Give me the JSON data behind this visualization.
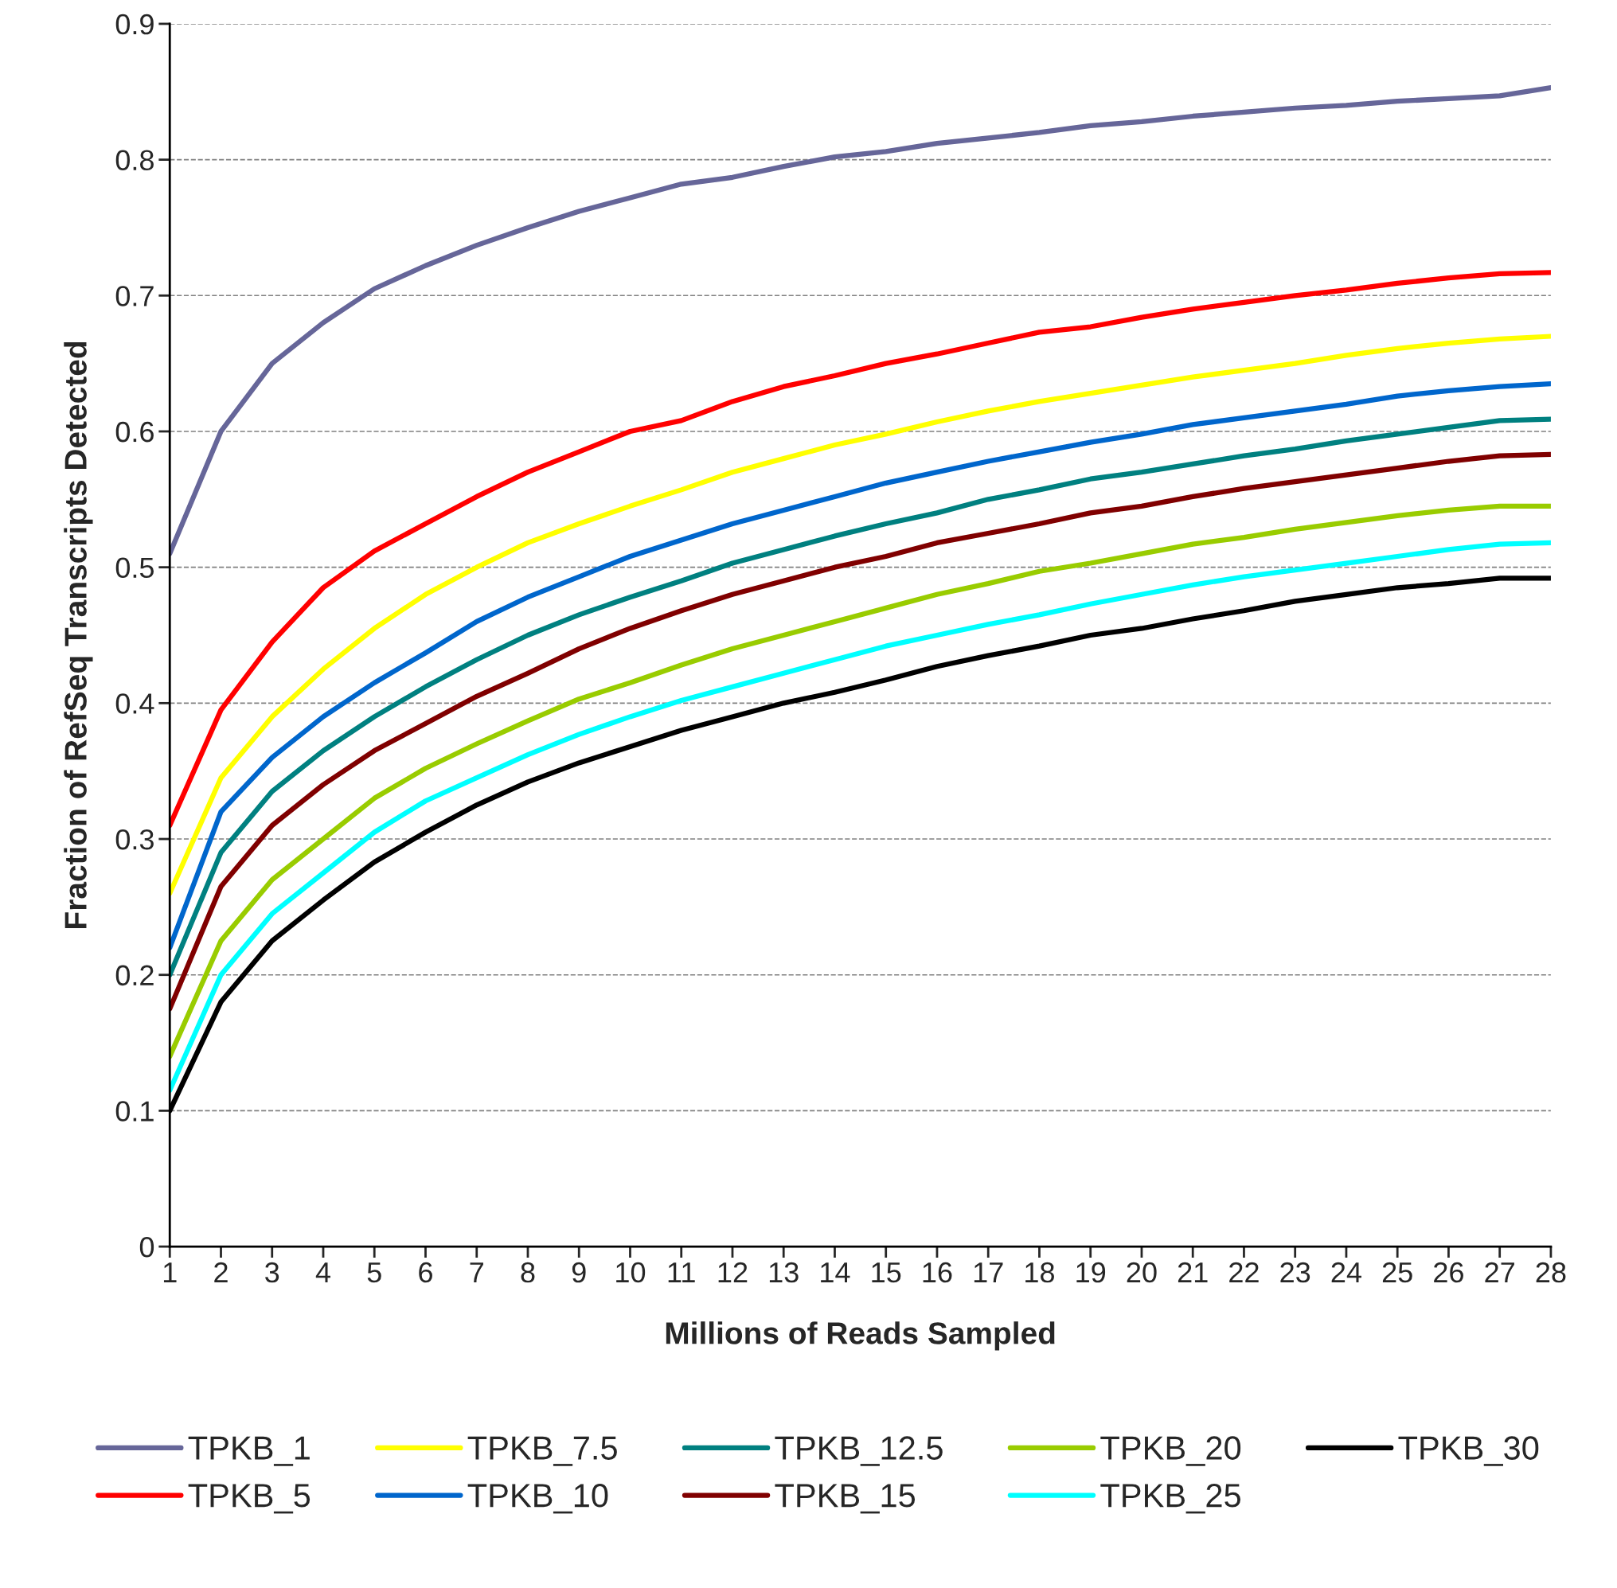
{
  "chart_data": {
    "type": "line",
    "xlabel": "Millions of Reads Sampled",
    "ylabel": "Fraction of RefSeq Transcripts Detected",
    "x": [
      1,
      2,
      3,
      4,
      5,
      6,
      7,
      8,
      9,
      10,
      11,
      12,
      13,
      14,
      15,
      16,
      17,
      18,
      19,
      20,
      21,
      22,
      23,
      24,
      25,
      26,
      27,
      28
    ],
    "series": [
      {
        "name": "TPKB_1",
        "color": "#666699",
        "values": [
          0.51,
          0.6,
          0.65,
          0.68,
          0.705,
          0.722,
          0.737,
          0.75,
          0.762,
          0.772,
          0.782,
          0.787,
          0.795,
          0.802,
          0.806,
          0.812,
          0.816,
          0.82,
          0.825,
          0.828,
          0.832,
          0.835,
          0.838,
          0.84,
          0.843,
          0.845,
          0.847,
          0.853
        ]
      },
      {
        "name": "TPKB_5",
        "color": "#ff0000",
        "values": [
          0.31,
          0.395,
          0.445,
          0.485,
          0.512,
          0.532,
          0.552,
          0.57,
          0.585,
          0.6,
          0.608,
          0.622,
          0.633,
          0.641,
          0.65,
          0.657,
          0.665,
          0.673,
          0.677,
          0.684,
          0.69,
          0.695,
          0.7,
          0.704,
          0.709,
          0.713,
          0.716,
          0.717
        ]
      },
      {
        "name": "TPKB_7.5",
        "color": "#ffff00",
        "values": [
          0.26,
          0.345,
          0.39,
          0.425,
          0.455,
          0.48,
          0.5,
          0.518,
          0.532,
          0.545,
          0.557,
          0.57,
          0.58,
          0.59,
          0.598,
          0.607,
          0.615,
          0.622,
          0.628,
          0.634,
          0.64,
          0.645,
          0.65,
          0.656,
          0.661,
          0.665,
          0.668,
          0.67
        ]
      },
      {
        "name": "TPKB_10",
        "color": "#0066cc",
        "values": [
          0.22,
          0.32,
          0.36,
          0.39,
          0.415,
          0.437,
          0.46,
          0.478,
          0.493,
          0.508,
          0.52,
          0.532,
          0.542,
          0.552,
          0.562,
          0.57,
          0.578,
          0.585,
          0.592,
          0.598,
          0.605,
          0.61,
          0.615,
          0.62,
          0.626,
          0.63,
          0.633,
          0.635
        ]
      },
      {
        "name": "TPKB_12.5",
        "color": "#008080",
        "values": [
          0.2,
          0.29,
          0.335,
          0.365,
          0.39,
          0.412,
          0.432,
          0.45,
          0.465,
          0.478,
          0.49,
          0.503,
          0.513,
          0.523,
          0.532,
          0.54,
          0.55,
          0.557,
          0.565,
          0.57,
          0.576,
          0.582,
          0.587,
          0.593,
          0.598,
          0.603,
          0.608,
          0.609
        ]
      },
      {
        "name": "TPKB_15",
        "color": "#800000",
        "values": [
          0.175,
          0.265,
          0.31,
          0.34,
          0.365,
          0.385,
          0.405,
          0.422,
          0.44,
          0.455,
          0.468,
          0.48,
          0.49,
          0.5,
          0.508,
          0.518,
          0.525,
          0.532,
          0.54,
          0.545,
          0.552,
          0.558,
          0.563,
          0.568,
          0.573,
          0.578,
          0.582,
          0.583
        ]
      },
      {
        "name": "TPKB_20",
        "color": "#99cc00",
        "values": [
          0.14,
          0.225,
          0.27,
          0.3,
          0.33,
          0.352,
          0.37,
          0.387,
          0.403,
          0.415,
          0.428,
          0.44,
          0.45,
          0.46,
          0.47,
          0.48,
          0.488,
          0.497,
          0.503,
          0.51,
          0.517,
          0.522,
          0.528,
          0.533,
          0.538,
          0.542,
          0.545,
          0.545
        ]
      },
      {
        "name": "TPKB_25",
        "color": "#00ffff",
        "values": [
          0.115,
          0.2,
          0.245,
          0.275,
          0.305,
          0.328,
          0.345,
          0.362,
          0.377,
          0.39,
          0.402,
          0.412,
          0.422,
          0.432,
          0.442,
          0.45,
          0.458,
          0.465,
          0.473,
          0.48,
          0.487,
          0.493,
          0.498,
          0.503,
          0.508,
          0.513,
          0.517,
          0.518
        ]
      },
      {
        "name": "TPKB_30",
        "color": "#000000",
        "values": [
          0.1,
          0.18,
          0.225,
          0.255,
          0.283,
          0.305,
          0.325,
          0.342,
          0.356,
          0.368,
          0.38,
          0.39,
          0.4,
          0.408,
          0.417,
          0.427,
          0.435,
          0.442,
          0.45,
          0.455,
          0.462,
          0.468,
          0.475,
          0.48,
          0.485,
          0.488,
          0.492,
          0.492
        ]
      }
    ],
    "xlim": [
      1,
      28
    ],
    "xticks": [
      1,
      2,
      3,
      4,
      5,
      6,
      7,
      8,
      9,
      10,
      11,
      12,
      13,
      14,
      15,
      16,
      17,
      18,
      19,
      20,
      21,
      22,
      23,
      24,
      25,
      26,
      27,
      28
    ],
    "ylim": [
      0,
      0.9
    ],
    "yticks": [
      0,
      0.1,
      0.2,
      0.3,
      0.4,
      0.5,
      0.6,
      0.7,
      0.8,
      0.9
    ],
    "grid": "y",
    "legend": "bottom",
    "marker": "none",
    "line_style": "solid"
  }
}
